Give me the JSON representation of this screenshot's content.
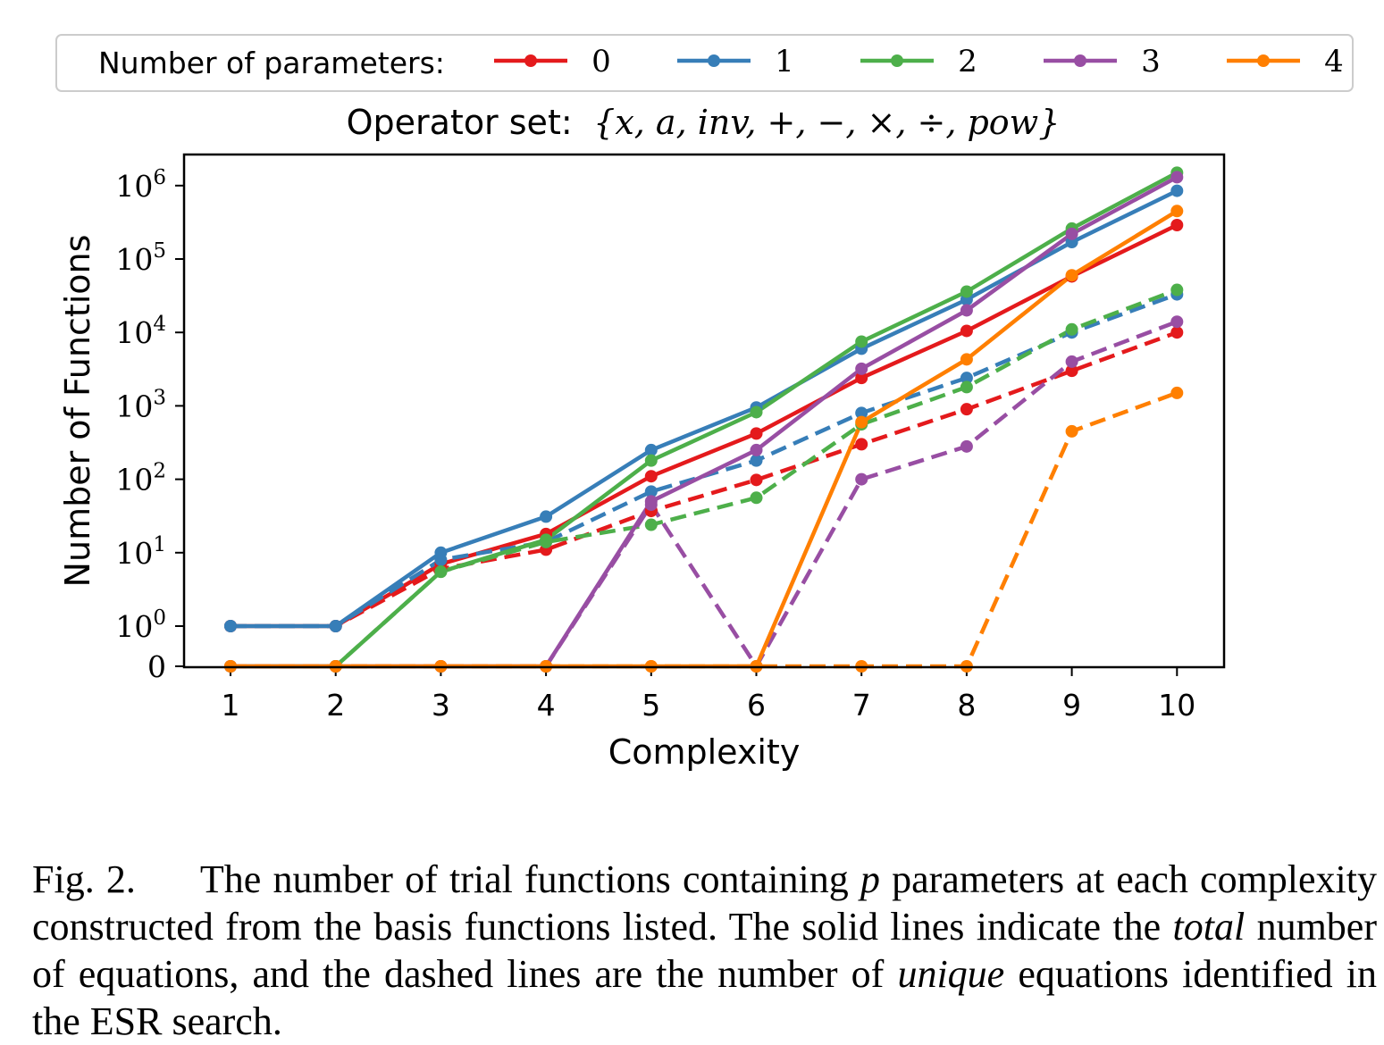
{
  "chart_data": {
    "type": "line",
    "title": "Operator set: {x, a, inv, +, −, ×, ÷, pow}",
    "title_prefix": "Operator set:",
    "title_math": "{x, a, inv, +, −, ×, ÷, pow}",
    "xlabel": "Complexity",
    "ylabel": "Number of Functions",
    "yscale": "symlog",
    "ylim": [
      0,
      1500000
    ],
    "x": [
      1,
      2,
      3,
      4,
      5,
      6,
      7,
      8,
      9,
      10
    ],
    "x_ticks": [
      "1",
      "2",
      "3",
      "4",
      "5",
      "6",
      "7",
      "8",
      "9",
      "10"
    ],
    "y_ticks": [
      {
        "value": 0,
        "base": "0",
        "exp": ""
      },
      {
        "value": 1,
        "base": "10",
        "exp": "0"
      },
      {
        "value": 10,
        "base": "10",
        "exp": "1"
      },
      {
        "value": 100,
        "base": "10",
        "exp": "2"
      },
      {
        "value": 1000,
        "base": "10",
        "exp": "3"
      },
      {
        "value": 10000,
        "base": "10",
        "exp": "4"
      },
      {
        "value": 100000,
        "base": "10",
        "exp": "5"
      },
      {
        "value": 1000000,
        "base": "10",
        "exp": "6"
      }
    ],
    "legend": {
      "title": "Number of parameters:",
      "placement": "top",
      "entries": [
        "0",
        "1",
        "2",
        "3",
        "4"
      ]
    },
    "line_styles": {
      "solid": "total",
      "dashed": "unique"
    },
    "series": [
      {
        "name": "0",
        "color": "#e41a1c",
        "total": [
          1,
          1,
          7,
          18,
          110,
          420,
          2400,
          10500,
          58000,
          290000
        ],
        "unique": [
          1,
          1,
          6,
          11,
          37,
          98,
          300,
          900,
          3000,
          10000
        ]
      },
      {
        "name": "1",
        "color": "#377eb8",
        "total": [
          1,
          1,
          10,
          31,
          250,
          950,
          6000,
          28000,
          170000,
          850000
        ],
        "unique": [
          1,
          1,
          8,
          14,
          68,
          180,
          800,
          2400,
          10000,
          33000
        ]
      },
      {
        "name": "2",
        "color": "#4daf4a",
        "total": [
          0,
          0,
          5.5,
          15,
          180,
          820,
          7500,
          36000,
          260000,
          1500000
        ],
        "unique": [
          0,
          0,
          5.5,
          14,
          24,
          56,
          560,
          1800,
          11000,
          38000
        ]
      },
      {
        "name": "3",
        "color": "#984ea3",
        "total": [
          0,
          0,
          0,
          0,
          50,
          250,
          3200,
          20000,
          220000,
          1300000
        ],
        "unique": [
          0,
          0,
          0,
          0,
          45,
          0,
          100,
          280,
          4000,
          14000
        ]
      },
      {
        "name": "4",
        "color": "#ff7f00",
        "total": [
          0,
          0,
          0,
          0,
          0,
          0,
          600,
          4300,
          60000,
          450000
        ],
        "unique": [
          0,
          0,
          0,
          0,
          0,
          0,
          0,
          0,
          450,
          1500
        ]
      }
    ]
  },
  "caption": {
    "label": "Fig. 2.",
    "text_1": "The number of trial functions containing ",
    "var": "p",
    "text_2": " parameters at each complexity constructed from the basis functions listed. The solid lines indicate the ",
    "em_1": "total",
    "text_3": " number of equations, and the dashed lines are the number of ",
    "em_2": "unique",
    "text_4": " equations identified in the ESR search."
  }
}
